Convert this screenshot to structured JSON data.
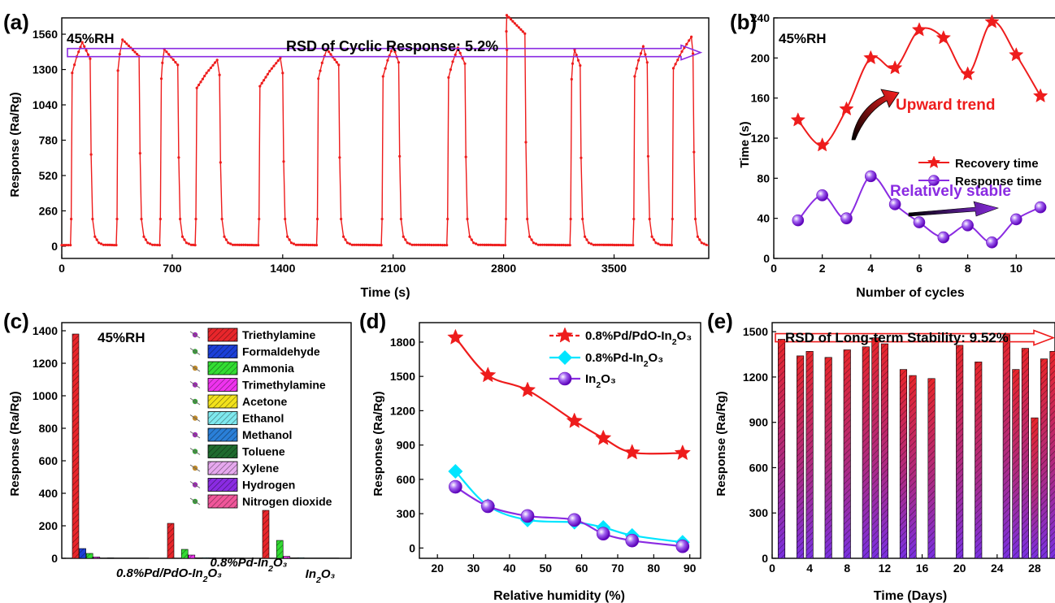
{
  "colors": {
    "red": "#ee1c1c",
    "purple": "#8a2be2",
    "cyan": "#00e5ff",
    "axis": "#000000"
  },
  "chart_data": [
    {
      "id": "a",
      "panel_label": "(a)",
      "type": "line",
      "xlabel": "Time (s)",
      "ylabel": "Response (Ra/Rg)",
      "xlim": [
        0,
        4100
      ],
      "ylim": [
        -90,
        1680
      ],
      "xticks": [
        0,
        700,
        1400,
        2100,
        2800,
        3500
      ],
      "yticks": [
        0,
        260,
        520,
        780,
        1040,
        1300,
        1560
      ],
      "annotations": {
        "condition": "45%RH",
        "rsd": "RSD of Cyclic Response: 5.2%"
      },
      "rsd_arrow_value": 1425,
      "series": [
        {
          "color": "#ee1c1c",
          "marker": "circle",
          "cycles": [
            {
              "on": 60,
              "peak_t": 130,
              "peak": 1500,
              "off": 180
            },
            {
              "on": 350,
              "peak_t": 385,
              "peak": 1520,
              "off": 490
            },
            {
              "on": 625,
              "peak_t": 650,
              "peak": 1450,
              "off": 735
            },
            {
              "on": 850,
              "peak_t": 985,
              "peak": 1370,
              "off": 1000
            },
            {
              "on": 1250,
              "peak_t": 1385,
              "peak": 1385,
              "off": 1400
            },
            {
              "on": 1620,
              "peak_t": 1680,
              "peak": 1450,
              "off": 1755
            },
            {
              "on": 2030,
              "peak_t": 2100,
              "peak": 1470,
              "off": 2135
            },
            {
              "on": 2445,
              "peak_t": 2510,
              "peak": 1460,
              "off": 2555
            },
            {
              "on": 2815,
              "peak_t": 2820,
              "peak": 1700,
              "off": 2935
            },
            {
              "on": 3225,
              "peak_t": 3250,
              "peak": 1445,
              "off": 3285
            },
            {
              "on": 3625,
              "peak_t": 3685,
              "peak": 1470,
              "off": 3710
            },
            {
              "on": 3870,
              "peak_t": 3990,
              "peak": 1540,
              "off": 4000
            }
          ]
        }
      ]
    },
    {
      "id": "b",
      "panel_label": "(b)",
      "type": "line",
      "xlabel": "Number of cycles",
      "ylabel": "Time (s)",
      "xlim": [
        0,
        11.6
      ],
      "ylim": [
        0,
        240
      ],
      "xticks": [
        0,
        2,
        4,
        6,
        8,
        10
      ],
      "yticks": [
        0,
        40,
        80,
        120,
        160,
        200,
        240
      ],
      "annotations": {
        "condition": "45%RH",
        "upward": "Upward trend",
        "stable": "Relatively stable"
      },
      "legend_position": "middle-right",
      "x": [
        1,
        2,
        3,
        4,
        5,
        6,
        7,
        8,
        9,
        10,
        11
      ],
      "series": [
        {
          "name": "Recovery time",
          "color": "#ee1c1c",
          "marker": "star",
          "values": [
            138,
            113,
            149,
            200,
            190,
            228,
            220,
            184,
            236,
            203,
            162
          ]
        },
        {
          "name": "Response time",
          "color": "#8a2be2",
          "marker": "sphere",
          "values": [
            38,
            63,
            40,
            82,
            54,
            36,
            21,
            33,
            16,
            39,
            51
          ]
        }
      ]
    },
    {
      "id": "c",
      "panel_label": "(c)",
      "type": "bar",
      "ylabel": "Response (Ra/Rg)",
      "ylim": [
        0,
        1450
      ],
      "yticks": [
        0,
        200,
        400,
        600,
        800,
        1000,
        1200,
        1400
      ],
      "annotations": {
        "condition": "45%RH"
      },
      "legend_position": "top-right",
      "categories": [
        "0.8%Pd/PdO-In₂O₃",
        "0.8%Pd-In₂O₃",
        "In₂O₃"
      ],
      "series": [
        {
          "name": "Triethylamine",
          "color": "#e8262b",
          "values": [
            1380,
            215,
            295
          ]
        },
        {
          "name": "Formaldehyde",
          "color": "#1c3fd8",
          "values": [
            60,
            0,
            0
          ]
        },
        {
          "name": "Ammonia",
          "color": "#33dd33",
          "values": [
            30,
            55,
            110
          ]
        },
        {
          "name": "Trimethylamine",
          "color": "#ee33ee",
          "values": [
            8,
            20,
            12
          ]
        },
        {
          "name": "Acetone",
          "color": "#f2e21c",
          "values": [
            2,
            3,
            3
          ]
        },
        {
          "name": "Ethanol",
          "color": "#7ee8ee",
          "values": [
            3,
            4,
            4
          ]
        },
        {
          "name": "Methanol",
          "color": "#2a7fd8",
          "values": [
            2,
            3,
            2
          ]
        },
        {
          "name": "Toluene",
          "color": "#1e6b2e",
          "values": [
            2,
            2,
            2
          ]
        },
        {
          "name": "Xylene",
          "color": "#e6a8ee",
          "values": [
            2,
            2,
            2
          ]
        },
        {
          "name": "Hydrogen",
          "color": "#8a2be2",
          "values": [
            2,
            2,
            2
          ]
        },
        {
          "name": "Nitrogen dioxide",
          "color": "#f0569a",
          "values": [
            2,
            2,
            2
          ]
        }
      ]
    },
    {
      "id": "d",
      "panel_label": "(d)",
      "type": "line",
      "xlabel": "Relative humidity (%)",
      "ylabel": "Response (Ra/Rg)",
      "xlim": [
        15,
        93
      ],
      "ylim": [
        -90,
        1970
      ],
      "xticks": [
        20,
        30,
        40,
        50,
        60,
        70,
        80,
        90
      ],
      "yticks": [
        0,
        300,
        600,
        900,
        1200,
        1500,
        1800
      ],
      "legend_position": "top-right",
      "x": [
        25,
        34,
        45,
        58,
        66,
        74,
        88
      ],
      "series": [
        {
          "name": "0.8%Pd/PdO-In₂O₃",
          "color": "#ee1c1c",
          "marker": "star",
          "values": [
            1840,
            1510,
            1380,
            1110,
            960,
            835,
            830
          ]
        },
        {
          "name": "0.8%Pd-In₂O₃",
          "color": "#00e5ff",
          "marker": "diamond",
          "values": [
            670,
            370,
            245,
            225,
            180,
            110,
            50
          ]
        },
        {
          "name": "In₂O₃",
          "color": "#8a2be2",
          "marker": "sphere",
          "values": [
            535,
            365,
            280,
            245,
            125,
            65,
            15
          ]
        }
      ]
    },
    {
      "id": "e",
      "panel_label": "(e)",
      "type": "bar",
      "xlabel": "Time (Days)",
      "ylabel": "Response (Ra/Rg)",
      "xlim": [
        0,
        30
      ],
      "ylim": [
        0,
        1560
      ],
      "xticks": [
        0,
        4,
        8,
        12,
        16,
        20,
        24,
        28
      ],
      "yticks": [
        0,
        300,
        600,
        900,
        1200,
        1500
      ],
      "annotations": {
        "rsd": "RSD of Long-term Stability: 9.52%"
      },
      "rsd_arrow_value": 1460,
      "days": [
        1,
        3,
        4,
        6,
        8,
        10,
        11,
        12,
        14,
        15,
        17,
        20,
        22,
        25,
        26,
        27,
        28,
        29,
        30
      ],
      "values": [
        1450,
        1340,
        1370,
        1330,
        1380,
        1400,
        1460,
        1420,
        1250,
        1210,
        1190,
        1410,
        1300,
        1480,
        1250,
        1390,
        930,
        1320,
        1370
      ]
    }
  ]
}
